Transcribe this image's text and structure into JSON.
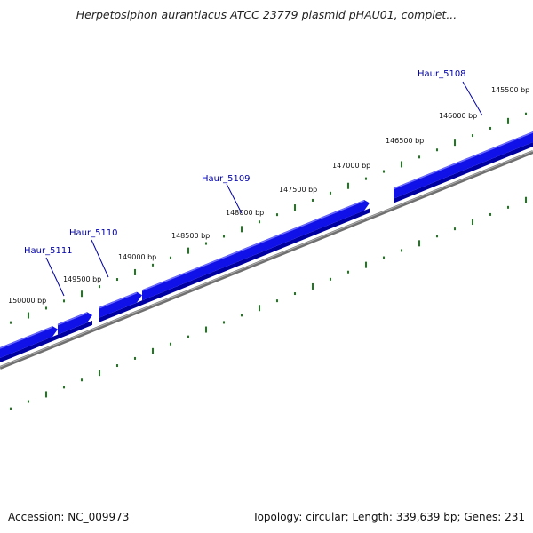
{
  "title": "Herpetosiphon aurantiacus ATCC 23779 plasmid pHAU01, complet...",
  "footer": {
    "accession": "Accession: NC_009973",
    "summary": "Topology: circular; Length: 339,639 bp; Genes: 231"
  },
  "colors": {
    "gene": "#1010e8",
    "gene_dark": "#0000a0",
    "gene_light": "#6b6bff",
    "backbone": "#707070",
    "tick": "#1e7a1e",
    "gene_label": "#0000aa"
  },
  "scale_labels": [
    "145500 bp",
    "146000 bp",
    "146500 bp",
    "147000 bp",
    "147500 bp",
    "148000 bp",
    "148500 bp",
    "149000 bp",
    "149500 bp",
    "150000 bp"
  ],
  "genes": [
    {
      "name": "Haur_5108"
    },
    {
      "name": "Haur_5109"
    },
    {
      "name": "Haur_5110"
    },
    {
      "name": "Haur_5111"
    }
  ]
}
